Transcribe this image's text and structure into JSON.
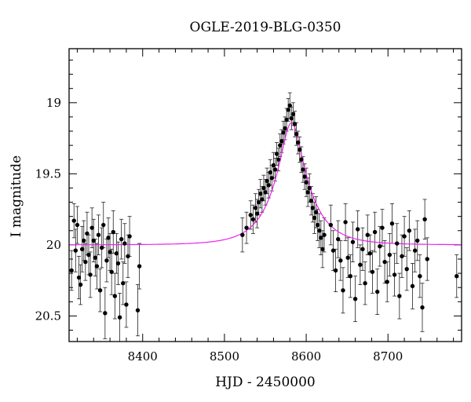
{
  "chart_data": {
    "type": "scatter",
    "title": "OGLE-2019-BLG-0350",
    "xlabel": "HJD - 2450000",
    "ylabel": "I magnitude",
    "xlim": [
      8310,
      8790
    ],
    "ylim": [
      20.68,
      18.62
    ],
    "y_inverted": true,
    "x_ticks": [
      8400,
      8500,
      8600,
      8700
    ],
    "y_ticks": [
      19,
      19.5,
      20,
      20.5
    ],
    "colors": {
      "points": "#000000",
      "model": "#ee22ee",
      "frame": "#000000"
    },
    "model": {
      "baseline": 20.0,
      "t0": 8582,
      "peak_mag": 19.14,
      "tE": 40,
      "u0": 0.3
    },
    "series": [
      {
        "marker": "filled-circle",
        "points": [
          [
            8313,
            20.18,
            0.14
          ],
          [
            8316,
            19.83,
            0.12
          ],
          [
            8318,
            20.04,
            0.15
          ],
          [
            8320,
            19.86,
            0.13
          ],
          [
            8322,
            20.23,
            0.15
          ],
          [
            8324,
            20.28,
            0.14
          ],
          [
            8326,
            20.03,
            0.16
          ],
          [
            8328,
            19.97,
            0.14
          ],
          [
            8330,
            20.12,
            0.13
          ],
          [
            8332,
            19.92,
            0.15
          ],
          [
            8334,
            20.07,
            0.14
          ],
          [
            8336,
            20.21,
            0.16
          ],
          [
            8338,
            19.88,
            0.14
          ],
          [
            8340,
            19.97,
            0.15
          ],
          [
            8342,
            20.09,
            0.13
          ],
          [
            8344,
            20.15,
            0.16
          ],
          [
            8346,
            19.93,
            0.14
          ],
          [
            8348,
            20.32,
            0.15
          ],
          [
            8350,
            20.02,
            0.14
          ],
          [
            8352,
            19.86,
            0.16
          ],
          [
            8354,
            20.48,
            0.18
          ],
          [
            8356,
            20.11,
            0.15
          ],
          [
            8358,
            19.95,
            0.14
          ],
          [
            8360,
            20.05,
            0.13
          ],
          [
            8362,
            20.19,
            0.16
          ],
          [
            8364,
            19.91,
            0.15
          ],
          [
            8366,
            20.36,
            0.16
          ],
          [
            8368,
            20.06,
            0.14
          ],
          [
            8370,
            20.13,
            0.15
          ],
          [
            8372,
            20.51,
            0.17
          ],
          [
            8374,
            19.96,
            0.14
          ],
          [
            8376,
            20.27,
            0.15
          ],
          [
            8378,
            19.99,
            0.14
          ],
          [
            8380,
            20.42,
            0.16
          ],
          [
            8382,
            20.08,
            0.15
          ],
          [
            8384,
            19.94,
            0.14
          ],
          [
            8394,
            20.46,
            0.18
          ],
          [
            8396,
            20.15,
            0.16
          ],
          [
            8522,
            19.93,
            0.12
          ],
          [
            8527,
            19.88,
            0.11
          ],
          [
            8532,
            19.79,
            0.1
          ],
          [
            8535,
            19.82,
            0.1
          ],
          [
            8538,
            19.74,
            0.1
          ],
          [
            8540,
            19.78,
            0.1
          ],
          [
            8542,
            19.7,
            0.09
          ],
          [
            8544,
            19.64,
            0.1
          ],
          [
            8546,
            19.68,
            0.09
          ],
          [
            8548,
            19.6,
            0.09
          ],
          [
            8550,
            19.63,
            0.09
          ],
          [
            8552,
            19.55,
            0.09
          ],
          [
            8554,
            19.58,
            0.09
          ],
          [
            8556,
            19.49,
            0.09
          ],
          [
            8558,
            19.53,
            0.09
          ],
          [
            8560,
            19.44,
            0.09
          ],
          [
            8562,
            19.47,
            0.08
          ],
          [
            8564,
            19.36,
            0.08
          ],
          [
            8566,
            19.4,
            0.08
          ],
          [
            8568,
            19.3,
            0.08
          ],
          [
            8570,
            19.27,
            0.08
          ],
          [
            8572,
            19.21,
            0.08
          ],
          [
            8574,
            19.18,
            0.08
          ],
          [
            8576,
            19.12,
            0.08
          ],
          [
            8578,
            19.05,
            0.08
          ],
          [
            8580,
            19.02,
            0.09
          ],
          [
            8582,
            19.11,
            0.08
          ],
          [
            8584,
            19.08,
            0.08
          ],
          [
            8586,
            19.15,
            0.09
          ],
          [
            8588,
            19.22,
            0.08
          ],
          [
            8590,
            19.28,
            0.08
          ],
          [
            8592,
            19.33,
            0.09
          ],
          [
            8594,
            19.4,
            0.09
          ],
          [
            8596,
            19.47,
            0.09
          ],
          [
            8598,
            19.52,
            0.09
          ],
          [
            8600,
            19.56,
            0.1
          ],
          [
            8602,
            19.63,
            0.1
          ],
          [
            8604,
            19.6,
            0.1
          ],
          [
            8606,
            19.69,
            0.1
          ],
          [
            8608,
            19.74,
            0.1
          ],
          [
            8610,
            19.81,
            0.11
          ],
          [
            8612,
            19.77,
            0.11
          ],
          [
            8614,
            19.86,
            0.11
          ],
          [
            8616,
            19.9,
            0.12
          ],
          [
            8618,
            19.95,
            0.12
          ],
          [
            8620,
            20.03,
            0.13
          ],
          [
            8622,
            19.93,
            0.12
          ],
          [
            8630,
            19.86,
            0.14
          ],
          [
            8633,
            20.04,
            0.14
          ],
          [
            8636,
            20.18,
            0.15
          ],
          [
            8639,
            19.96,
            0.13
          ],
          [
            8642,
            20.11,
            0.14
          ],
          [
            8645,
            20.32,
            0.16
          ],
          [
            8648,
            19.84,
            0.13
          ],
          [
            8651,
            20.09,
            0.14
          ],
          [
            8654,
            20.22,
            0.15
          ],
          [
            8657,
            19.98,
            0.14
          ],
          [
            8660,
            20.38,
            0.16
          ],
          [
            8663,
            19.89,
            0.13
          ],
          [
            8666,
            20.14,
            0.14
          ],
          [
            8669,
            20.03,
            0.15
          ],
          [
            8672,
            20.27,
            0.15
          ],
          [
            8675,
            19.93,
            0.14
          ],
          [
            8678,
            20.06,
            0.13
          ],
          [
            8681,
            20.19,
            0.15
          ],
          [
            8684,
            19.91,
            0.14
          ],
          [
            8687,
            20.33,
            0.16
          ],
          [
            8690,
            20.01,
            0.14
          ],
          [
            8693,
            19.88,
            0.13
          ],
          [
            8696,
            20.12,
            0.15
          ],
          [
            8699,
            20.26,
            0.14
          ],
          [
            8702,
            20.07,
            0.15
          ],
          [
            8705,
            19.85,
            0.14
          ],
          [
            8708,
            20.21,
            0.15
          ],
          [
            8711,
            19.99,
            0.14
          ],
          [
            8714,
            20.36,
            0.16
          ],
          [
            8717,
            20.08,
            0.15
          ],
          [
            8720,
            19.94,
            0.14
          ],
          [
            8723,
            20.17,
            0.15
          ],
          [
            8726,
            19.9,
            0.14
          ],
          [
            8730,
            20.29,
            0.16
          ],
          [
            8733,
            20.04,
            0.15
          ],
          [
            8736,
            19.97,
            0.14
          ],
          [
            8739,
            20.22,
            0.15
          ],
          [
            8742,
            20.44,
            0.17
          ],
          [
            8745,
            19.82,
            0.14
          ],
          [
            8748,
            20.1,
            0.15
          ],
          [
            8784,
            20.22,
            0.15
          ]
        ]
      }
    ]
  }
}
